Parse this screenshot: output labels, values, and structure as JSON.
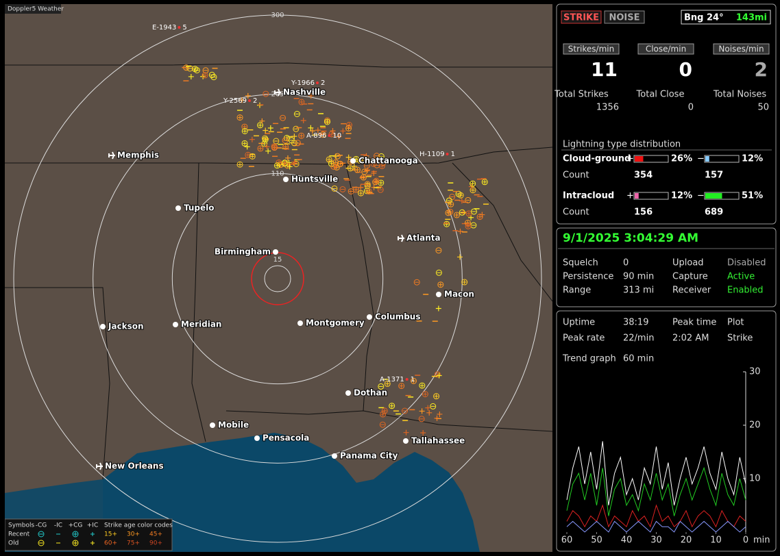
{
  "map": {
    "title": "Doppler5 Weather",
    "range_rings": [
      15,
      110,
      205,
      300
    ],
    "cities": [
      "Nashville",
      "Memphis",
      "Chattanooga",
      "Huntsville",
      "Tupelo",
      "Atlanta",
      "Birmingham",
      "Macon",
      "Jackson",
      "Meridian",
      "Montgomery",
      "Columbus",
      "Dothan",
      "Mobile",
      "Pensacola",
      "Tallahassee",
      "Panama City",
      "New Orleans"
    ],
    "storm_labels": [
      {
        "id": "E-1943",
        "count": 5
      },
      {
        "id": "Y-1966",
        "count": 2
      },
      {
        "id": "Y-2569",
        "count": 2
      },
      {
        "id": "A-896",
        "count": 10
      },
      {
        "id": "H-1109",
        "count": 1
      },
      {
        "id": "A-1371",
        "count": 1
      }
    ],
    "legend": {
      "symbols_title": "Symbols",
      "types": [
        "-CG",
        "-IC",
        "+CG",
        "+IC"
      ],
      "age_title": "Strike age color codes",
      "rows": [
        {
          "label": "Recent",
          "ages": [
            "15+",
            "30+",
            "45+"
          ]
        },
        {
          "label": "Old",
          "ages": [
            "60+",
            "75+",
            "90+"
          ]
        }
      ]
    }
  },
  "controls": {
    "buttons": [
      "STRIKE",
      "NOISE"
    ],
    "bearing": "Bng 24°",
    "distance": "143mi"
  },
  "rates": [
    {
      "label": "Strikes/min",
      "value": 11,
      "total_label": "Total Strikes",
      "total": 1356
    },
    {
      "label": "Close/min",
      "value": 0,
      "total_label": "Total Close",
      "total": 0
    },
    {
      "label": "Noises/min",
      "value": 2,
      "total_label": "Total Noises",
      "total": 50
    }
  ],
  "distribution": {
    "title": "Lightning type distribution",
    "count_label": "Count",
    "rows": [
      {
        "label": "Cloud-ground",
        "positive": {
          "sign": "+",
          "percent": 26,
          "percent_label": "26%",
          "count": 354
        },
        "negative": {
          "sign": "−",
          "percent": 12,
          "percent_label": "12%",
          "count": 157
        }
      },
      {
        "label": "Intracloud",
        "positive": {
          "sign": "+",
          "percent": 12,
          "percent_label": "12%",
          "count": 156
        },
        "negative": {
          "sign": "−",
          "percent": 51,
          "percent_label": "51%",
          "count": 689
        }
      }
    ]
  },
  "status": {
    "datetime": "9/1/2025 3:04:29 AM",
    "items": [
      {
        "label": "Squelch",
        "value": 0
      },
      {
        "label": "Persistence",
        "value": "90 min"
      },
      {
        "label": "Range",
        "value": "313 mi"
      },
      {
        "label": "Upload",
        "value": "Disabled"
      },
      {
        "label": "Capture",
        "value": "Active"
      },
      {
        "label": "Receiver",
        "value": "Enabled"
      }
    ]
  },
  "stats": {
    "items": [
      {
        "label": "Uptime",
        "value": "38:19"
      },
      {
        "label": "Peak rate",
        "value": "22/min"
      },
      {
        "label": "Peak time",
        "value": "2:02 AM"
      },
      {
        "label": "Plot",
        "value": "Strike"
      }
    ],
    "trend_label": "Trend graph",
    "trend_window": "60 min"
  },
  "chart_data": {
    "type": "line",
    "xlabel": "min",
    "x": [
      60,
      58,
      56,
      54,
      52,
      50,
      48,
      46,
      44,
      42,
      40,
      38,
      36,
      34,
      32,
      30,
      28,
      26,
      24,
      22,
      20,
      18,
      16,
      14,
      12,
      10,
      8,
      6,
      4,
      2,
      0
    ],
    "xlim": [
      60,
      0
    ],
    "xticks": [
      60,
      50,
      40,
      30,
      20,
      10,
      0
    ],
    "ylim": [
      0,
      30
    ],
    "yticks": [
      10,
      20,
      30
    ],
    "series": [
      {
        "color": "#ffffff",
        "values": [
          6,
          12,
          16,
          9,
          15,
          8,
          17,
          5,
          11,
          14,
          7,
          10,
          6,
          12,
          9,
          16,
          8,
          13,
          5,
          10,
          14,
          9,
          12,
          16,
          11,
          8,
          15,
          10,
          7,
          14,
          9
        ]
      },
      {
        "color": "#22cc22",
        "values": [
          4,
          9,
          11,
          6,
          11,
          5,
          12,
          3,
          8,
          10,
          5,
          7,
          4,
          9,
          6,
          11,
          6,
          9,
          3,
          7,
          10,
          6,
          9,
          12,
          8,
          5,
          11,
          7,
          5,
          10,
          6
        ]
      },
      {
        "color": "#dd2222",
        "values": [
          2,
          4,
          3,
          1,
          3,
          2,
          5,
          1,
          3,
          2,
          1,
          4,
          2,
          3,
          1,
          5,
          2,
          3,
          1,
          2,
          4,
          1,
          3,
          4,
          3,
          1,
          4,
          2,
          1,
          3,
          2
        ]
      },
      {
        "color": "#8899ff",
        "values": [
          1,
          2,
          1,
          0,
          1,
          2,
          1,
          0,
          2,
          1,
          0,
          1,
          2,
          1,
          0,
          2,
          1,
          1,
          0,
          2,
          1,
          0,
          1,
          2,
          1,
          0,
          1,
          2,
          1,
          0,
          1
        ]
      }
    ]
  }
}
